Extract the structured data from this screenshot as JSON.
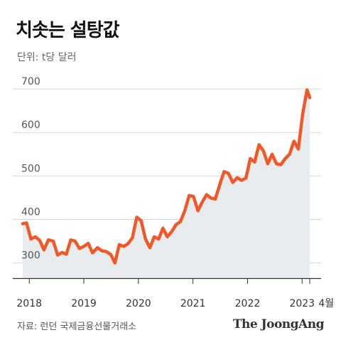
{
  "header": {
    "title": "치솟는 설탕값",
    "unit": "단위: t당 달러"
  },
  "footer": {
    "source": "자료: 런던 국제금융선물거래소",
    "brand": "The JoongAng"
  },
  "colors": {
    "line": "#f0582a",
    "area": "#e9ecee",
    "grid": "#d6d6d6",
    "axis": "#333333",
    "text": "#555555"
  },
  "chart_data": {
    "type": "area",
    "title": "치솟는 설탕값",
    "ylabel": "단위: t당 달러",
    "xlabel": "",
    "ylim": [
      265,
      710
    ],
    "xlim": [
      2017.75,
      2023.4
    ],
    "grid": true,
    "yticks": [
      700,
      600,
      500,
      400,
      300
    ],
    "xticks": [
      {
        "label": "2018",
        "x": 2018.0
      },
      {
        "label": "2019",
        "x": 2019.0
      },
      {
        "label": "2020",
        "x": 2020.0
      },
      {
        "label": "2021",
        "x": 2021.0
      },
      {
        "label": "2022",
        "x": 2022.0
      },
      {
        "label": "2023",
        "x": 2023.0
      }
    ],
    "end_label": "4월",
    "series": [
      {
        "values": [
          [
            2017.88,
            390
          ],
          [
            2017.95,
            392
          ],
          [
            2018.03,
            355
          ],
          [
            2018.11,
            360
          ],
          [
            2018.19,
            352
          ],
          [
            2018.27,
            330
          ],
          [
            2018.35,
            353
          ],
          [
            2018.44,
            350
          ],
          [
            2018.52,
            318
          ],
          [
            2018.6,
            324
          ],
          [
            2018.68,
            320
          ],
          [
            2018.76,
            353
          ],
          [
            2018.84,
            350
          ],
          [
            2018.92,
            333
          ],
          [
            2019.0,
            338
          ],
          [
            2019.08,
            345
          ],
          [
            2019.16,
            323
          ],
          [
            2019.25,
            335
          ],
          [
            2019.33,
            328
          ],
          [
            2019.41,
            326
          ],
          [
            2019.49,
            320
          ],
          [
            2019.57,
            300
          ],
          [
            2019.65,
            342
          ],
          [
            2019.73,
            338
          ],
          [
            2019.81,
            344
          ],
          [
            2019.89,
            358
          ],
          [
            2019.97,
            405
          ],
          [
            2020.05,
            397
          ],
          [
            2020.13,
            355
          ],
          [
            2020.21,
            335
          ],
          [
            2020.29,
            360
          ],
          [
            2020.37,
            355
          ],
          [
            2020.45,
            380
          ],
          [
            2020.53,
            360
          ],
          [
            2020.61,
            372
          ],
          [
            2020.69,
            388
          ],
          [
            2020.77,
            395
          ],
          [
            2020.85,
            420
          ],
          [
            2020.93,
            455
          ],
          [
            2021.01,
            453
          ],
          [
            2021.09,
            420
          ],
          [
            2021.17,
            440
          ],
          [
            2021.25,
            457
          ],
          [
            2021.33,
            449
          ],
          [
            2021.41,
            447
          ],
          [
            2021.49,
            480
          ],
          [
            2021.57,
            510
          ],
          [
            2021.65,
            506
          ],
          [
            2021.73,
            485
          ],
          [
            2021.81,
            496
          ],
          [
            2021.89,
            490
          ],
          [
            2021.97,
            495
          ],
          [
            2022.05,
            540
          ],
          [
            2022.13,
            532
          ],
          [
            2022.21,
            572
          ],
          [
            2022.29,
            558
          ],
          [
            2022.37,
            528
          ],
          [
            2022.45,
            550
          ],
          [
            2022.53,
            528
          ],
          [
            2022.61,
            526
          ],
          [
            2022.69,
            540
          ],
          [
            2022.77,
            550
          ],
          [
            2022.85,
            580
          ],
          [
            2022.93,
            562
          ],
          [
            2023.01,
            642
          ],
          [
            2023.09,
            698
          ],
          [
            2023.14,
            680
          ]
        ]
      }
    ]
  }
}
